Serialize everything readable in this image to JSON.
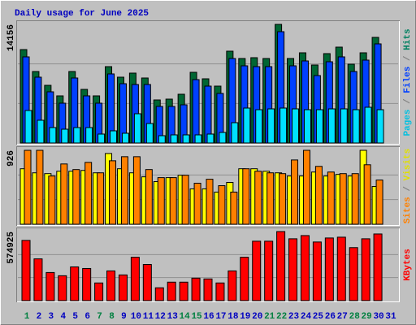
{
  "title": "Daily usage for June 2025",
  "chart_data": [
    {
      "type": "bar",
      "legend_separator": "/",
      "ylim": [
        0,
        14156
      ],
      "yticks": [
        14156
      ],
      "grid_divisions": 3,
      "series": [
        {
          "name": "Hits",
          "color": "#006633",
          "label_color": "#008060",
          "values": [
            11150,
            8532,
            6884,
            5624,
            8532,
            6399,
            5624,
            9114,
            7854,
            8339,
            7757,
            5139,
            5236,
            5818,
            8436,
            7660,
            6787,
            10957,
            10084,
            10181,
            10084,
            14156,
            10084,
            10763,
            9308,
            10666,
            11441,
            9405,
            10763,
            12605,
            0
          ]
        },
        {
          "name": "Files",
          "color": "#0040ff",
          "label_color": "#0040ff",
          "values": [
            10278,
            7854,
            6108,
            4751,
            7757,
            5624,
            4751,
            8242,
            7078,
            6981,
            6981,
            4363,
            4363,
            4557,
            7563,
            6787,
            5915,
            10084,
            9211,
            9114,
            9114,
            13284,
            9211,
            9793,
            8048,
            9696,
            10278,
            8532,
            9890,
            11829,
            0
          ]
        },
        {
          "name": "Pages",
          "color": "#00e0ff",
          "label_color": "#00c0e0",
          "values": [
            3878,
            2715,
            1842,
            1648,
            1842,
            1842,
            1067,
            1454,
            1164,
            3491,
            2327,
            873,
            970,
            970,
            970,
            1067,
            1260,
            2424,
            4169,
            3975,
            4072,
            4169,
            4072,
            3975,
            3975,
            4072,
            4072,
            3975,
            4266,
            3975,
            0
          ]
        }
      ]
    },
    {
      "type": "bar",
      "legend_separator": "/",
      "ylim": [
        0,
        926
      ],
      "yticks": [
        926
      ],
      "grid_divisions": 3,
      "series": [
        {
          "name": "Visits",
          "color": "#ffff00",
          "label_color": "#e0e000",
          "values": [
            695,
            644,
            634,
            664,
            664,
            674,
            644,
            886,
            695,
            644,
            594,
            534,
            584,
            614,
            443,
            443,
            403,
            524,
            695,
            695,
            664,
            644,
            604,
            604,
            654,
            604,
            624,
            604,
            926,
            473,
            0
          ]
        },
        {
          "name": "Sites",
          "color": "#ff8000",
          "label_color": "#ff8000",
          "values": [
            926,
            926,
            604,
            755,
            685,
            775,
            644,
            795,
            846,
            846,
            685,
            584,
            584,
            614,
            514,
            564,
            483,
            403,
            695,
            664,
            644,
            634,
            805,
            926,
            725,
            654,
            634,
            634,
            745,
            554,
            0
          ]
        }
      ]
    },
    {
      "type": "bar",
      "legend_separator": "/",
      "ylim": [
        0,
        574925
      ],
      "yticks": [
        574925
      ],
      "grid_divisions": 3,
      "categories": [
        "1",
        "2",
        "3",
        "4",
        "5",
        "6",
        "7",
        "8",
        "9",
        "10",
        "11",
        "12",
        "13",
        "14",
        "15",
        "16",
        "17",
        "18",
        "19",
        "20",
        "21",
        "22",
        "23",
        "24",
        "25",
        "26",
        "27",
        "28",
        "29",
        "30",
        "31"
      ],
      "weekend": [
        true,
        false,
        false,
        false,
        false,
        false,
        true,
        true,
        false,
        false,
        false,
        false,
        false,
        true,
        true,
        false,
        false,
        false,
        false,
        false,
        true,
        true,
        false,
        false,
        false,
        false,
        false,
        true,
        true,
        false,
        false
      ],
      "weekend_color": "#008040",
      "weekday_color": "#0000c0",
      "series": [
        {
          "name": "KBytes",
          "color": "#ff0000",
          "label_color": "#ff0000",
          "values": [
            501375,
            347620,
            233975,
            207235,
            280770,
            267400,
            147070,
            247345,
            213920,
            360990,
            300825,
            106960,
            153755,
            153755,
            187180,
            180495,
            147070,
            247345,
            360990,
            494690,
            494690,
            574925,
            514745,
            541485,
            488005,
            521430,
            528115,
            441210,
            514745,
            554855,
            0
          ]
        }
      ]
    }
  ]
}
